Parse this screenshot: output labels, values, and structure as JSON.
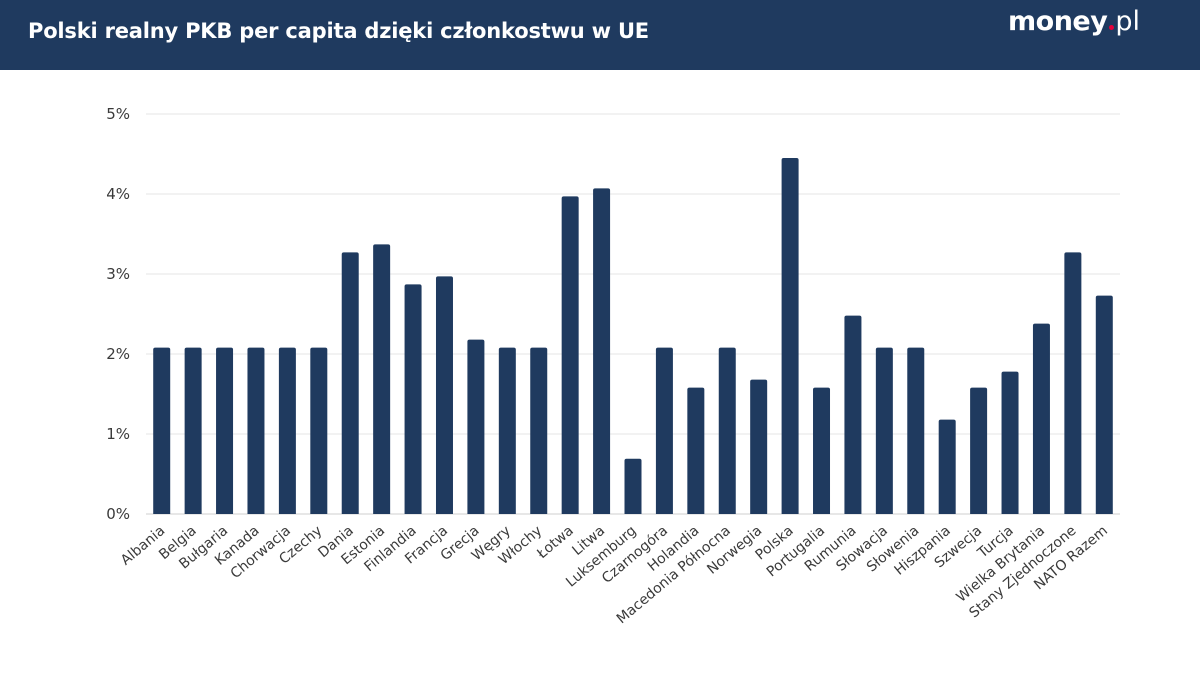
{
  "header": {
    "title": "Polski realny PKB per capita dzięki członkostwu w UE",
    "logo_main": "money",
    "logo_suffix": "pl",
    "background": "#1f3a5f",
    "logo_dot_color": "#e4003a"
  },
  "chart_data": {
    "type": "bar",
    "title": "",
    "xlabel": "",
    "ylabel": "",
    "ylim": [
      0,
      5
    ],
    "y_ticks": [
      0,
      1,
      2,
      3,
      4,
      5
    ],
    "y_tick_labels": [
      "0%",
      "1%",
      "2%",
      "3%",
      "4%",
      "5%"
    ],
    "grid": true,
    "bar_color": "#1f3a5f",
    "categories": [
      "Albania",
      "Belgia",
      "Bułgaria",
      "Kanada",
      "Chorwacja",
      "Czechy",
      "Dania",
      "Estonia",
      "Finlandia",
      "Francja",
      "Grecja",
      "Węgry",
      "Włochy",
      "Łotwa",
      "Litwa",
      "Luksemburg",
      "Czarnogóra",
      "Holandia",
      "Macedonia Północna",
      "Norwegia",
      "Polska",
      "Portugalia",
      "Rumunia",
      "Słowacja",
      "Słowenia",
      "Hiszpania",
      "Szwecja",
      "Turcja",
      "Wielka Brytania",
      "Stany Zjednoczone",
      "NATO Razem"
    ],
    "values": [
      2.08,
      2.08,
      2.08,
      2.08,
      2.08,
      2.08,
      3.27,
      3.37,
      2.87,
      2.97,
      2.18,
      2.08,
      2.08,
      3.97,
      4.07,
      0.69,
      2.08,
      1.58,
      2.08,
      1.68,
      4.45,
      1.58,
      2.48,
      2.08,
      2.08,
      1.18,
      1.58,
      1.78,
      2.38,
      3.27,
      2.73
    ]
  }
}
